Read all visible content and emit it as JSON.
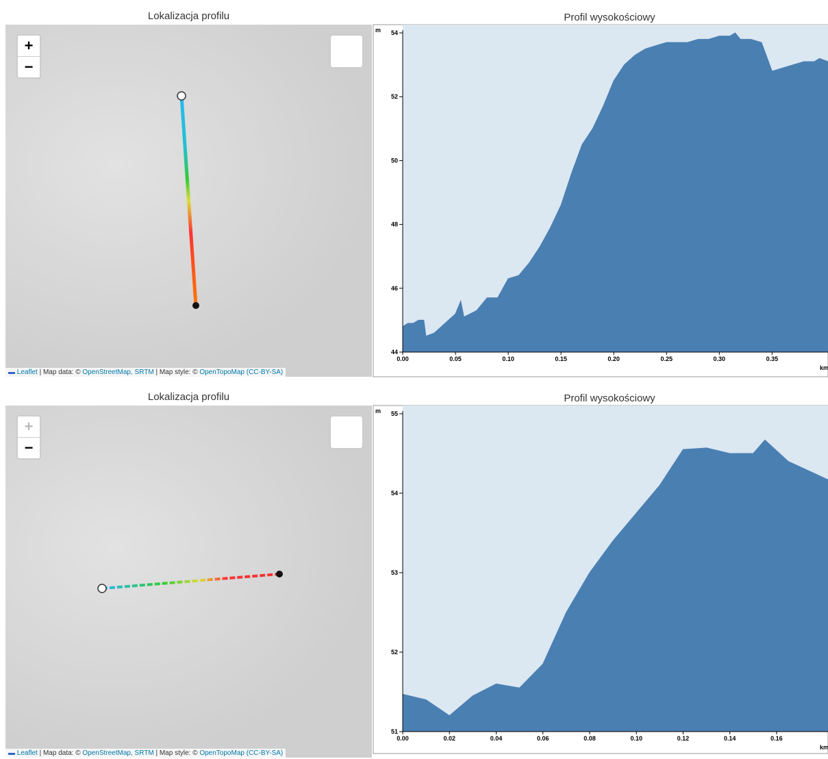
{
  "maps": [
    {
      "title": "Lokalizacja profilu",
      "zoom_in": "+",
      "zoom_out": "−",
      "attribution": {
        "leaflet": "Leaflet",
        "data_prefix": "| Map data: ©",
        "data_link": "OpenStreetMap, SRTM",
        "style_prefix": "| Map style: ©",
        "style_link": "OpenTopoMap",
        "license": "(CC-BY-SA)"
      }
    },
    {
      "title": "Lokalizacja profilu",
      "zoom_in": "+",
      "zoom_out": "−",
      "attribution": {
        "leaflet": "Leaflet",
        "data_prefix": "| Map data: ©",
        "data_link": "OpenStreetMap, SRTM",
        "style_prefix": "| Map style: ©",
        "style_link": "OpenTopoMap",
        "license": "(CC-BY-SA)"
      }
    }
  ],
  "chart_data": [
    {
      "type": "area",
      "title": "Profil wysokościowy",
      "x_label": "km",
      "y_label": "m",
      "color": "#4a7fb2",
      "x": [
        0,
        0.005,
        0.01,
        0.015,
        0.02,
        0.022,
        0.03,
        0.04,
        0.05,
        0.055,
        0.058,
        0.07,
        0.08,
        0.09,
        0.1,
        0.11,
        0.12,
        0.13,
        0.14,
        0.15,
        0.16,
        0.17,
        0.18,
        0.19,
        0.2,
        0.21,
        0.22,
        0.23,
        0.24,
        0.25,
        0.26,
        0.27,
        0.28,
        0.29,
        0.3,
        0.31,
        0.315,
        0.32,
        0.33,
        0.34,
        0.35,
        0.36,
        0.37,
        0.38,
        0.39,
        0.395,
        0.403
      ],
      "values": [
        44.8,
        44.9,
        44.9,
        45.0,
        45.0,
        44.5,
        44.6,
        44.9,
        45.2,
        45.6,
        45.1,
        45.3,
        45.7,
        45.7,
        46.3,
        46.4,
        46.8,
        47.3,
        47.9,
        48.6,
        49.6,
        50.5,
        51.0,
        51.7,
        52.5,
        53.0,
        53.3,
        53.5,
        53.6,
        53.7,
        53.7,
        53.7,
        53.8,
        53.8,
        53.9,
        53.9,
        54.0,
        53.8,
        53.8,
        53.7,
        52.8,
        52.9,
        53.0,
        53.1,
        53.1,
        53.2,
        53.1
      ],
      "xlim": [
        0,
        0.403
      ],
      "ylim": [
        44,
        54
      ],
      "xticks": [
        {
          "value": 0,
          "label": "0.00"
        },
        0.05,
        {
          "value": 0.1,
          "label": "0.10"
        },
        0.15,
        {
          "value": 0.2,
          "label": "0.20"
        },
        0.25,
        {
          "value": 0.3,
          "label": "0.30"
        },
        0.35
      ],
      "yticks": [
        44,
        46,
        48,
        50,
        52,
        54
      ]
    },
    {
      "type": "area",
      "title": "Profil wysokościowy",
      "x_label": "km",
      "y_label": "m",
      "color": "#4a7fb2",
      "x": [
        0,
        0.01,
        0.02,
        0.03,
        0.04,
        0.05,
        0.06,
        0.07,
        0.08,
        0.09,
        0.1,
        0.11,
        0.12,
        0.13,
        0.14,
        0.15,
        0.155,
        0.165,
        0.182
      ],
      "values": [
        51.47,
        51.4,
        51.2,
        51.45,
        51.6,
        51.55,
        51.85,
        52.5,
        53.0,
        53.4,
        53.75,
        54.1,
        54.55,
        54.57,
        54.5,
        54.5,
        54.67,
        54.4,
        54.17
      ],
      "xlim": [
        0,
        0.182
      ],
      "ylim": [
        51,
        55
      ],
      "xticks": [
        {
          "value": 0,
          "label": "0.00"
        },
        0.02,
        0.04,
        0.06,
        0.08,
        {
          "value": 0.1,
          "label": "0.10"
        },
        0.12,
        0.14,
        0.16
      ],
      "yticks": [
        51,
        52,
        53,
        54,
        55
      ]
    }
  ]
}
